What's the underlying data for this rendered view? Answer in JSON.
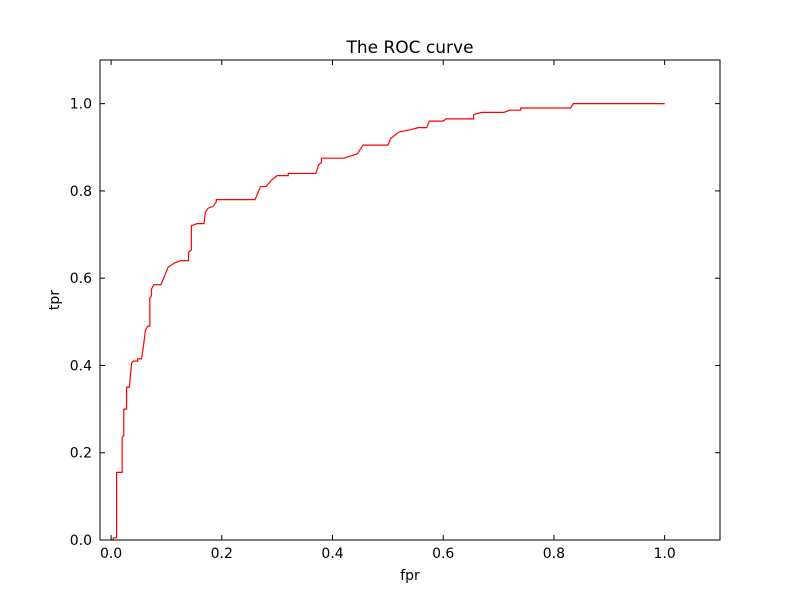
{
  "chart_data": {
    "type": "line",
    "title": "The ROC curve",
    "xlabel": "fpr",
    "ylabel": "tpr",
    "xlim": [
      -0.02,
      1.1
    ],
    "ylim": [
      0.0,
      1.1
    ],
    "grid": false,
    "legend": "none",
    "x_ticks": [
      0.0,
      0.2,
      0.4,
      0.6,
      0.8,
      1.0
    ],
    "x_tick_labels": [
      "0.0",
      "0.2",
      "0.4",
      "0.6",
      "0.8",
      "1.0"
    ],
    "y_ticks": [
      0.0,
      0.2,
      0.4,
      0.6,
      0.8,
      1.0
    ],
    "y_tick_labels": [
      "0.0",
      "0.2",
      "0.4",
      "0.6",
      "0.8",
      "1.0"
    ],
    "colors": {
      "line": "#ff0000",
      "axes": "#000000",
      "background": "#ffffff"
    },
    "series": [
      {
        "points": [
          [
            0.0,
            0.0
          ],
          [
            0.004,
            0.0
          ],
          [
            0.004,
            0.005
          ],
          [
            0.01,
            0.005
          ],
          [
            0.01,
            0.155
          ],
          [
            0.02,
            0.155
          ],
          [
            0.02,
            0.235
          ],
          [
            0.023,
            0.24
          ],
          [
            0.023,
            0.3
          ],
          [
            0.028,
            0.3
          ],
          [
            0.028,
            0.35
          ],
          [
            0.033,
            0.35
          ],
          [
            0.037,
            0.405
          ],
          [
            0.04,
            0.41
          ],
          [
            0.048,
            0.41
          ],
          [
            0.048,
            0.415
          ],
          [
            0.055,
            0.415
          ],
          [
            0.058,
            0.44
          ],
          [
            0.06,
            0.46
          ],
          [
            0.062,
            0.48
          ],
          [
            0.066,
            0.49
          ],
          [
            0.07,
            0.49
          ],
          [
            0.07,
            0.555
          ],
          [
            0.073,
            0.56
          ],
          [
            0.073,
            0.575
          ],
          [
            0.077,
            0.585
          ],
          [
            0.09,
            0.585
          ],
          [
            0.095,
            0.6
          ],
          [
            0.103,
            0.625
          ],
          [
            0.115,
            0.635
          ],
          [
            0.125,
            0.64
          ],
          [
            0.14,
            0.64
          ],
          [
            0.14,
            0.66
          ],
          [
            0.145,
            0.665
          ],
          [
            0.145,
            0.72
          ],
          [
            0.155,
            0.725
          ],
          [
            0.168,
            0.725
          ],
          [
            0.17,
            0.75
          ],
          [
            0.175,
            0.76
          ],
          [
            0.185,
            0.765
          ],
          [
            0.19,
            0.775
          ],
          [
            0.19,
            0.78
          ],
          [
            0.26,
            0.78
          ],
          [
            0.27,
            0.81
          ],
          [
            0.28,
            0.81
          ],
          [
            0.29,
            0.825
          ],
          [
            0.3,
            0.835
          ],
          [
            0.32,
            0.835
          ],
          [
            0.32,
            0.84
          ],
          [
            0.37,
            0.84
          ],
          [
            0.375,
            0.86
          ],
          [
            0.38,
            0.865
          ],
          [
            0.38,
            0.875
          ],
          [
            0.42,
            0.875
          ],
          [
            0.445,
            0.885
          ],
          [
            0.45,
            0.895
          ],
          [
            0.455,
            0.905
          ],
          [
            0.5,
            0.905
          ],
          [
            0.505,
            0.92
          ],
          [
            0.52,
            0.935
          ],
          [
            0.54,
            0.94
          ],
          [
            0.555,
            0.945
          ],
          [
            0.57,
            0.945
          ],
          [
            0.575,
            0.96
          ],
          [
            0.6,
            0.96
          ],
          [
            0.605,
            0.965
          ],
          [
            0.655,
            0.965
          ],
          [
            0.655,
            0.975
          ],
          [
            0.67,
            0.98
          ],
          [
            0.71,
            0.98
          ],
          [
            0.72,
            0.985
          ],
          [
            0.74,
            0.985
          ],
          [
            0.74,
            0.99
          ],
          [
            0.83,
            0.99
          ],
          [
            0.835,
            1.0
          ],
          [
            1.0,
            1.0
          ]
        ]
      }
    ]
  }
}
